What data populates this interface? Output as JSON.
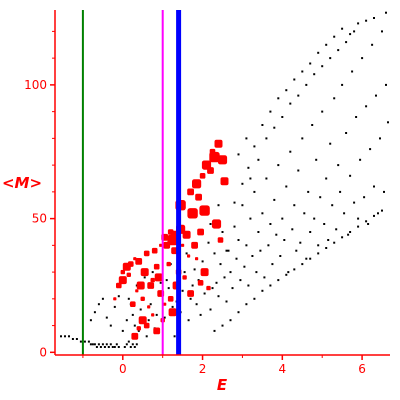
{
  "chart_data": {
    "type": "scatter",
    "xlabel": "E",
    "ylabel": "<M>",
    "xlim": [
      -1.7,
      6.7
    ],
    "ylim": [
      -1,
      128
    ],
    "x_ticks": [
      0,
      2,
      4,
      6
    ],
    "y_ticks": [
      0,
      50,
      100
    ],
    "grid": false,
    "colors": {
      "axis": "#ff0000",
      "black_points": "#000000",
      "red_points": "#ff0000",
      "green_line": "#008000",
      "magenta_line": "#ff00ff",
      "blue_line": "#0000ff"
    },
    "vertical_lines": [
      {
        "x": -1.0,
        "color": "#008000"
      },
      {
        "x": 1.0,
        "color": "#ff00ff"
      },
      {
        "x": 1.4,
        "color": "#0000ff"
      }
    ],
    "series": [
      {
        "color": "#000000",
        "marker": "small",
        "points": [
          [
            -1.55,
            6
          ],
          [
            -1.45,
            6
          ],
          [
            -1.35,
            6
          ],
          [
            -1.25,
            5
          ],
          [
            -1.15,
            5
          ],
          [
            -1.05,
            4
          ],
          [
            -0.95,
            4
          ],
          [
            -0.85,
            4
          ],
          [
            -0.8,
            3
          ],
          [
            -0.75,
            3
          ],
          [
            -0.7,
            3
          ],
          [
            -0.65,
            2
          ],
          [
            -0.6,
            3
          ],
          [
            -0.55,
            2
          ],
          [
            -0.5,
            3
          ],
          [
            -0.45,
            2
          ],
          [
            -0.4,
            3
          ],
          [
            -0.35,
            2
          ],
          [
            -0.3,
            3
          ],
          [
            -0.25,
            2
          ],
          [
            -0.2,
            2
          ],
          [
            -0.15,
            3
          ],
          [
            -0.1,
            2
          ],
          [
            0.05,
            2
          ],
          [
            0.1,
            3
          ],
          [
            0.15,
            4
          ],
          [
            0.2,
            2
          ],
          [
            0.25,
            3
          ],
          [
            0.3,
            2
          ],
          [
            0.35,
            3
          ],
          [
            -0.8,
            12
          ],
          [
            -0.7,
            15
          ],
          [
            -0.6,
            18
          ],
          [
            -0.5,
            20
          ],
          [
            -0.4,
            13
          ],
          [
            -0.3,
            10
          ],
          [
            -0.2,
            17
          ],
          [
            -0.1,
            21
          ],
          [
            0.0,
            8
          ],
          [
            0.1,
            12
          ],
          [
            0.15,
            20
          ],
          [
            0.2,
            18
          ],
          [
            0.25,
            14
          ],
          [
            0.3,
            10
          ],
          [
            0.35,
            25
          ],
          [
            0.4,
            8
          ],
          [
            0.45,
            16
          ],
          [
            0.5,
            20
          ],
          [
            0.55,
            28
          ],
          [
            0.6,
            6
          ],
          [
            0.65,
            12
          ],
          [
            0.7,
            18
          ],
          [
            0.75,
            30
          ],
          [
            0.8,
            9
          ],
          [
            0.85,
            14
          ],
          [
            0.9,
            22
          ],
          [
            0.95,
            26
          ],
          [
            1.05,
            13
          ],
          [
            1.1,
            27
          ],
          [
            1.15,
            24
          ],
          [
            1.2,
            33
          ],
          [
            1.25,
            17
          ],
          [
            1.3,
            6
          ],
          [
            1.35,
            19
          ],
          [
            1.45,
            15
          ],
          [
            1.5,
            23
          ],
          [
            1.55,
            30
          ],
          [
            1.6,
            37
          ],
          [
            1.65,
            12
          ],
          [
            1.7,
            20
          ],
          [
            1.75,
            25
          ],
          [
            1.8,
            31
          ],
          [
            1.85,
            18
          ],
          [
            1.9,
            27
          ],
          [
            1.95,
            14
          ],
          [
            2.0,
            34
          ],
          [
            2.05,
            22
          ],
          [
            2.1,
            29
          ],
          [
            2.15,
            41
          ],
          [
            2.2,
            16
          ],
          [
            2.25,
            24
          ],
          [
            2.3,
            37
          ],
          [
            2.35,
            26
          ],
          [
            2.4,
            21
          ],
          [
            2.45,
            33
          ],
          [
            2.5,
            45
          ],
          [
            2.55,
            28
          ],
          [
            2.6,
            19
          ],
          [
            2.65,
            38
          ],
          [
            2.7,
            30
          ],
          [
            2.75,
            24
          ],
          [
            2.8,
            47
          ],
          [
            2.85,
            35
          ],
          [
            2.9,
            42
          ],
          [
            2.95,
            27
          ],
          [
            3.0,
            55
          ],
          [
            3.05,
            32
          ],
          [
            3.1,
            40
          ],
          [
            3.15,
            25
          ],
          [
            3.2,
            50
          ],
          [
            3.25,
            36
          ],
          [
            3.3,
            60
          ],
          [
            3.35,
            30
          ],
          [
            3.4,
            45
          ],
          [
            3.45,
            38
          ],
          [
            3.5,
            52
          ],
          [
            3.55,
            28
          ],
          [
            3.6,
            65
          ],
          [
            3.65,
            40
          ],
          [
            3.7,
            48
          ],
          [
            3.75,
            33
          ],
          [
            3.8,
            57
          ],
          [
            3.85,
            44
          ],
          [
            3.9,
            70
          ],
          [
            3.95,
            36
          ],
          [
            4.0,
            50
          ],
          [
            4.05,
            42
          ],
          [
            4.1,
            62
          ],
          [
            4.15,
            30
          ],
          [
            4.2,
            75
          ],
          [
            4.25,
            46
          ],
          [
            4.3,
            55
          ],
          [
            4.35,
            38
          ],
          [
            4.4,
            68
          ],
          [
            4.45,
            41
          ],
          [
            4.5,
            80
          ],
          [
            4.55,
            52
          ],
          [
            4.6,
            35
          ],
          [
            4.65,
            60
          ],
          [
            4.7,
            45
          ],
          [
            4.75,
            85
          ],
          [
            4.8,
            50
          ],
          [
            4.85,
            72
          ],
          [
            4.9,
            40
          ],
          [
            4.95,
            58
          ],
          [
            5.0,
            90
          ],
          [
            5.05,
            48
          ],
          [
            5.1,
            65
          ],
          [
            5.15,
            42
          ],
          [
            5.2,
            78
          ],
          [
            5.25,
            55
          ],
          [
            5.3,
            95
          ],
          [
            5.35,
            46
          ],
          [
            5.4,
            70
          ],
          [
            5.45,
            60
          ],
          [
            5.5,
            100
          ],
          [
            5.55,
            52
          ],
          [
            5.6,
            82
          ],
          [
            5.65,
            44
          ],
          [
            5.7,
            66
          ],
          [
            5.75,
            105
          ],
          [
            5.8,
            56
          ],
          [
            5.85,
            88
          ],
          [
            5.9,
            50
          ],
          [
            5.95,
            72
          ],
          [
            6.0,
            110
          ],
          [
            6.05,
            58
          ],
          [
            6.1,
            92
          ],
          [
            6.15,
            48
          ],
          [
            6.2,
            76
          ],
          [
            6.25,
            115
          ],
          [
            6.3,
            62
          ],
          [
            6.35,
            96
          ],
          [
            6.4,
            52
          ],
          [
            6.45,
            80
          ],
          [
            6.5,
            120
          ],
          [
            6.55,
            60
          ],
          [
            6.6,
            100
          ],
          [
            6.65,
            86
          ],
          [
            6.6,
            127
          ],
          [
            3.3,
            77
          ],
          [
            3.5,
            85
          ],
          [
            3.7,
            90
          ],
          [
            3.9,
            95
          ],
          [
            4.1,
            98
          ],
          [
            4.3,
            102
          ],
          [
            4.5,
            105
          ],
          [
            4.7,
            108
          ],
          [
            4.9,
            112
          ],
          [
            5.1,
            115
          ],
          [
            5.3,
            118
          ],
          [
            5.5,
            121
          ],
          [
            5.7,
            119
          ],
          [
            5.9,
            123
          ],
          [
            6.1,
            124
          ],
          [
            6.3,
            125
          ],
          [
            3.2,
            65
          ],
          [
            3.4,
            72
          ],
          [
            3.6,
            80
          ],
          [
            3.8,
            84
          ],
          [
            4.0,
            88
          ],
          [
            4.2,
            93
          ],
          [
            4.4,
            96
          ],
          [
            4.6,
            100
          ],
          [
            4.8,
            104
          ],
          [
            5.0,
            107
          ],
          [
            5.2,
            110
          ],
          [
            5.4,
            113
          ],
          [
            5.6,
            116
          ],
          [
            5.8,
            120
          ],
          [
            2.7,
            12
          ],
          [
            2.9,
            15
          ],
          [
            3.1,
            18
          ],
          [
            3.3,
            20
          ],
          [
            3.5,
            23
          ],
          [
            3.7,
            25
          ],
          [
            3.9,
            27
          ],
          [
            4.1,
            29
          ],
          [
            4.3,
            31
          ],
          [
            4.5,
            33
          ],
          [
            4.7,
            35
          ],
          [
            4.9,
            37
          ],
          [
            5.1,
            39
          ],
          [
            5.3,
            41
          ],
          [
            5.5,
            43
          ],
          [
            5.7,
            45
          ],
          [
            5.9,
            47
          ],
          [
            6.1,
            49
          ],
          [
            6.3,
            51
          ],
          [
            6.5,
            53
          ],
          [
            2.3,
            8
          ],
          [
            2.5,
            10
          ],
          [
            2.6,
            38
          ],
          [
            2.8,
            56
          ],
          [
            3.0,
            63
          ],
          [
            3.15,
            69
          ],
          [
            2.2,
            48
          ],
          [
            2.4,
            55
          ],
          [
            2.9,
            74
          ],
          [
            3.1,
            80
          ]
        ]
      },
      {
        "color": "#ff0000",
        "marker": "large",
        "points": [
          [
            1.2,
            45
          ],
          [
            1.3,
            44
          ],
          [
            1.25,
            42
          ],
          [
            1.05,
            43
          ],
          [
            1.1,
            40
          ],
          [
            0.95,
            40
          ],
          [
            0.8,
            38
          ],
          [
            1.45,
            55
          ],
          [
            1.7,
            60
          ],
          [
            1.85,
            63
          ],
          [
            2.0,
            66
          ],
          [
            0.6,
            37
          ],
          [
            0.55,
            30
          ],
          [
            0.5,
            20
          ],
          [
            0.7,
            25
          ],
          [
            0.65,
            17
          ],
          [
            0.85,
            32
          ],
          [
            0.9,
            28
          ],
          [
            1.15,
            33
          ],
          [
            1.3,
            38
          ],
          [
            1.5,
            40
          ],
          [
            1.6,
            44
          ],
          [
            1.75,
            52
          ],
          [
            1.9,
            58
          ],
          [
            2.1,
            70
          ],
          [
            2.25,
            75
          ],
          [
            2.4,
            78
          ],
          [
            2.3,
            73
          ],
          [
            2.2,
            68
          ],
          [
            2.5,
            72
          ],
          [
            0.3,
            35
          ],
          [
            0.2,
            33
          ],
          [
            0.1,
            32
          ],
          [
            0.0,
            30
          ],
          [
            0.4,
            34
          ],
          [
            0.35,
            23
          ],
          [
            0.25,
            18
          ],
          [
            0.45,
            25
          ],
          [
            0.75,
            27
          ],
          [
            0.95,
            22
          ],
          [
            1.05,
            18
          ],
          [
            1.2,
            20
          ],
          [
            1.35,
            25
          ],
          [
            1.55,
            28
          ],
          [
            1.7,
            22
          ],
          [
            1.85,
            35
          ],
          [
            1.95,
            26
          ],
          [
            2.05,
            30
          ],
          [
            2.15,
            24
          ],
          [
            2.35,
            48
          ],
          [
            2.45,
            42
          ],
          [
            2.55,
            64
          ],
          [
            2.05,
            53
          ],
          [
            1.95,
            45
          ],
          [
            1.8,
            40
          ],
          [
            1.65,
            36
          ],
          [
            1.4,
            30
          ],
          [
            1.25,
            15
          ],
          [
            1.0,
            12
          ],
          [
            0.85,
            8
          ],
          [
            0.75,
            14
          ],
          [
            0.6,
            10
          ],
          [
            0.5,
            12
          ],
          [
            0.4,
            9
          ],
          [
            0.3,
            6
          ],
          [
            -0.2,
            20
          ],
          [
            -0.1,
            25
          ],
          [
            0.0,
            27
          ],
          [
            0.15,
            29
          ],
          [
            1.45,
            46
          ]
        ]
      }
    ]
  }
}
